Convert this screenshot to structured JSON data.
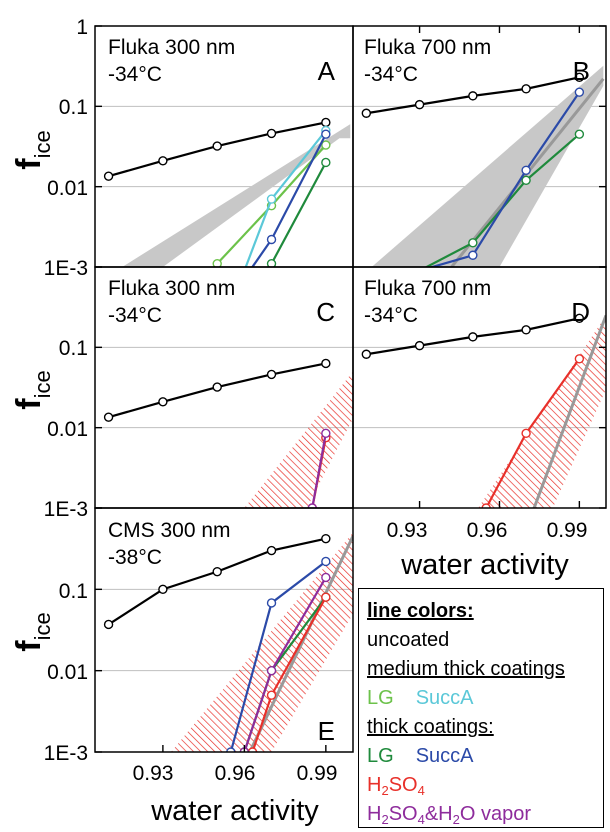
{
  "figure": {
    "y_ticks": [
      "1",
      "0.1",
      "0.01",
      "1E-3"
    ],
    "x_ticks": [
      "0.93",
      "0.96",
      "0.99"
    ],
    "xlabel": "water activity",
    "ylabel_main": "f",
    "ylabel_sub": "ice"
  },
  "colors": {
    "uncoated": "#000000",
    "lg_medium": "#6cc24a",
    "succa_medium": "#5bc8d8",
    "lg_thick": "#1f8a3c",
    "succa_thick": "#2b4aa8",
    "h2so4": "#e8302a",
    "h2so4_vapor": "#8e2c9c",
    "fit_line": "#999999",
    "band_fill": "#c8c8c8",
    "hatch": "#e8302a"
  },
  "legend": {
    "title": "line colors:",
    "uncoated": "uncoated",
    "medium": "medium thick coatings",
    "lg": "LG",
    "succa": "SuccA",
    "thick": "thick coatings:",
    "h2so4_a": "H",
    "h2so4_b": "2",
    "h2so4_c": "SO",
    "h2so4_d": "4",
    "vap_a": "H",
    "vap_b": "2",
    "vap_c": "SO",
    "vap_d": "4",
    "vap_e": "&H",
    "vap_f": "2",
    "vap_g": "O vapor"
  },
  "chart_data": [
    {
      "type": "line",
      "panel": "A",
      "title": "Fluka 300 nm",
      "subtitle": "-34°C",
      "xlabel": "",
      "ylabel": "fice",
      "xlim": [
        0.905,
        1.0
      ],
      "ylim": [
        0.001,
        1
      ],
      "yscale": "log",
      "shaded_band": {
        "x": [
          0.915,
          0.999,
          0.999,
          0.995,
          0.93
        ],
        "y": [
          0.001,
          0.06,
          0.04,
          0.04,
          0.001
        ]
      },
      "series": [
        {
          "name": "uncoated",
          "color": "#000000",
          "x": [
            0.91,
            0.93,
            0.95,
            0.97,
            0.99
          ],
          "y": [
            0.0135,
            0.021,
            0.032,
            0.046,
            0.063
          ]
        },
        {
          "name": "LG medium",
          "color": "#6cc24a",
          "x": [
            0.95,
            0.97,
            0.99
          ],
          "y": [
            0.0011,
            0.0058,
            0.033
          ]
        },
        {
          "name": "SuccA medium",
          "color": "#5bc8d8",
          "x": [
            0.96,
            0.97,
            0.99
          ],
          "y": [
            0.0009,
            0.007,
            0.05
          ]
        },
        {
          "name": "LG thick",
          "color": "#1f8a3c",
          "x": [
            0.968,
            0.97,
            0.99
          ],
          "y": [
            0.0009,
            0.0011,
            0.02
          ]
        },
        {
          "name": "SuccA thick",
          "color": "#2b4aa8",
          "x": [
            0.962,
            0.97,
            0.99
          ],
          "y": [
            0.0009,
            0.0022,
            0.045
          ]
        }
      ]
    },
    {
      "type": "line",
      "panel": "B",
      "title": "Fluka 700 nm",
      "subtitle": "-34°C",
      "xlabel": "",
      "ylabel": "",
      "xlim": [
        0.905,
        1.0
      ],
      "ylim": [
        0.001,
        1
      ],
      "yscale": "log",
      "shaded_band": {
        "x": [
          0.912,
          0.999,
          0.999,
          0.96,
          0.95
        ],
        "y": [
          0.001,
          0.32,
          0.18,
          0.001,
          0.001
        ]
      },
      "fit_line": {
        "x": [
          0.942,
          0.999
        ],
        "y": [
          0.001,
          0.22
        ]
      },
      "series": [
        {
          "name": "uncoated",
          "color": "#000000",
          "x": [
            0.91,
            0.93,
            0.95,
            0.97,
            0.99
          ],
          "y": [
            0.082,
            0.105,
            0.135,
            0.165,
            0.23
          ]
        },
        {
          "name": "LG thick",
          "color": "#1f8a3c",
          "x": [
            0.93,
            0.95,
            0.97,
            0.99
          ],
          "y": [
            0.0009,
            0.002,
            0.012,
            0.045
          ]
        },
        {
          "name": "SuccA thick",
          "color": "#2b4aa8",
          "x": [
            0.93,
            0.95,
            0.97,
            0.99
          ],
          "y": [
            0.0009,
            0.0014,
            0.016,
            0.15
          ]
        }
      ]
    },
    {
      "type": "line",
      "panel": "C",
      "title": "Fluka 300 nm",
      "subtitle": "-34°C",
      "xlabel": "",
      "ylabel": "fice",
      "xlim": [
        0.905,
        1.0
      ],
      "ylim": [
        0.001,
        1
      ],
      "yscale": "log",
      "hatched_band": {
        "x": [
          0.96,
          1.0,
          1.0,
          0.983
        ],
        "y": [
          0.001,
          0.05,
          0.013,
          0.001
        ]
      },
      "series": [
        {
          "name": "uncoated",
          "color": "#000000",
          "x": [
            0.91,
            0.93,
            0.95,
            0.97,
            0.99
          ],
          "y": [
            0.0135,
            0.021,
            0.032,
            0.046,
            0.063
          ]
        },
        {
          "name": "H2SO4",
          "color": "#e8302a",
          "x": [
            0.985,
            0.99
          ],
          "y": [
            0.001,
            0.0075
          ]
        },
        {
          "name": "H2SO4&H2O vapor",
          "color": "#8e2c9c",
          "x": [
            0.985,
            0.99
          ],
          "y": [
            0.001,
            0.0085
          ]
        }
      ]
    },
    {
      "type": "line",
      "panel": "D",
      "title": "Fluka 700 nm",
      "subtitle": "-34°C",
      "xlabel": "water activity",
      "ylabel": "",
      "xlim": [
        0.905,
        1.0
      ],
      "ylim": [
        0.001,
        1
      ],
      "yscale": "log",
      "x_ticks": [
        0.93,
        0.96,
        0.99
      ],
      "hatched_band": {
        "x": [
          0.952,
          1.0,
          1.0,
          0.98
        ],
        "y": [
          0.001,
          0.25,
          0.03,
          0.001
        ]
      },
      "fit_line": {
        "x": [
          0.973,
          1.0
        ],
        "y": [
          0.001,
          0.25
        ]
      },
      "series": [
        {
          "name": "uncoated",
          "color": "#000000",
          "x": [
            0.91,
            0.93,
            0.95,
            0.97,
            0.99
          ],
          "y": [
            0.082,
            0.105,
            0.135,
            0.165,
            0.23
          ]
        },
        {
          "name": "H2SO4",
          "color": "#e8302a",
          "x": [
            0.955,
            0.97,
            0.99
          ],
          "y": [
            0.001,
            0.0085,
            0.072
          ]
        }
      ]
    },
    {
      "type": "line",
      "panel": "E",
      "title": "CMS 300 nm",
      "subtitle": "-38°C",
      "xlabel": "water activity",
      "ylabel": "fice",
      "xlim": [
        0.905,
        1.0
      ],
      "ylim": [
        0.001,
        1
      ],
      "yscale": "log",
      "x_ticks": [
        0.93,
        0.96,
        0.99
      ],
      "hatched_band": {
        "x": [
          0.933,
          1.0,
          1.0,
          0.97
        ],
        "y": [
          0.001,
          0.5,
          0.05,
          0.001
        ]
      },
      "fit_line": {
        "x": [
          0.962,
          1.0
        ],
        "y": [
          0.001,
          0.45
        ]
      },
      "series": [
        {
          "name": "uncoated",
          "color": "#000000",
          "x": [
            0.91,
            0.93,
            0.95,
            0.97,
            0.99
          ],
          "y": [
            0.037,
            0.1,
            0.165,
            0.3,
            0.42
          ]
        },
        {
          "name": "SuccA thick",
          "color": "#2b4aa8",
          "x": [
            0.955,
            0.97,
            0.99
          ],
          "y": [
            0.001,
            0.068,
            0.22
          ]
        },
        {
          "name": "LG thick",
          "color": "#1f8a3c",
          "x": [
            0.96,
            0.97,
            0.99
          ],
          "y": [
            0.001,
            0.01,
            0.08
          ]
        },
        {
          "name": "H2SO4",
          "color": "#e8302a",
          "x": [
            0.963,
            0.97,
            0.99
          ],
          "y": [
            0.001,
            0.005,
            0.08
          ]
        },
        {
          "name": "H2SO4&H2O vapor",
          "color": "#8e2c9c",
          "x": [
            0.96,
            0.97,
            0.99
          ],
          "y": [
            0.001,
            0.01,
            0.14
          ]
        }
      ]
    }
  ]
}
